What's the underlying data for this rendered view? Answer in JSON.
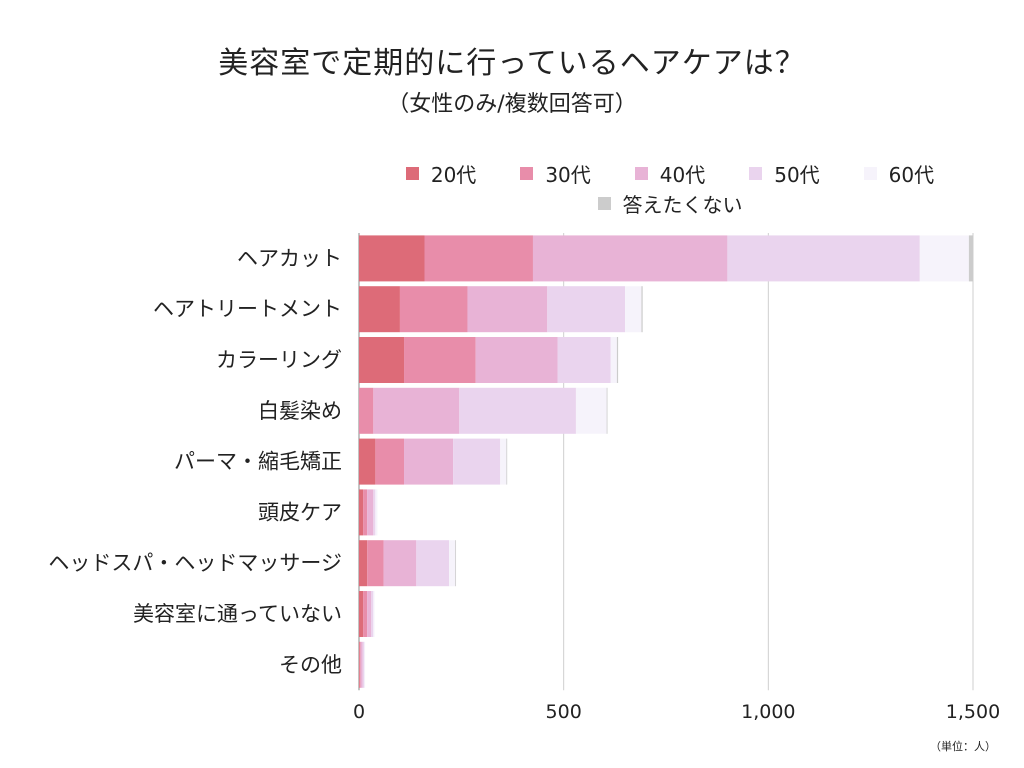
{
  "chart_data": {
    "type": "bar",
    "orientation": "horizontal",
    "stacked": true,
    "title": "美容室で定期的に行っているヘアケアは？",
    "subtitle": "（女性のみ/複数回答可）",
    "unit_note": "（単位：人）",
    "categories": [
      "ヘアカット",
      "ヘアトリートメント",
      "カラーリング",
      "白髪染め",
      "パーマ・縮毛矯正",
      "頭皮ケア",
      "ヘッドスパ・ヘッドマッサージ",
      "美容室に通っていない",
      "その他"
    ],
    "series": [
      {
        "name": "20代",
        "color": "#dd6b78",
        "values": [
          160,
          100,
          110,
          0,
          40,
          10,
          20,
          10,
          2
        ]
      },
      {
        "name": "30代",
        "color": "#e88daa",
        "values": [
          265,
          165,
          175,
          35,
          70,
          10,
          40,
          10,
          2
        ]
      },
      {
        "name": "40代",
        "color": "#e8b3d6",
        "values": [
          475,
          195,
          200,
          210,
          120,
          15,
          80,
          10,
          5
        ]
      },
      {
        "name": "50代",
        "color": "#ead4ee",
        "values": [
          470,
          190,
          130,
          285,
          115,
          5,
          80,
          5,
          4
        ]
      },
      {
        "name": "60代",
        "color": "#f6f3fb",
        "values": [
          120,
          40,
          15,
          75,
          15,
          5,
          15,
          3,
          2
        ]
      },
      {
        "name": "答えたくない",
        "color": "#cccccc",
        "values": [
          10,
          3,
          3,
          2,
          2,
          0,
          2,
          0,
          0
        ]
      }
    ],
    "xlim": [
      0,
      1500
    ],
    "xticks": [
      0,
      500,
      1000,
      1500
    ],
    "xtick_labels": [
      "0",
      "500",
      "1,000",
      "1,500"
    ],
    "grid": true,
    "legend_position": "top"
  }
}
